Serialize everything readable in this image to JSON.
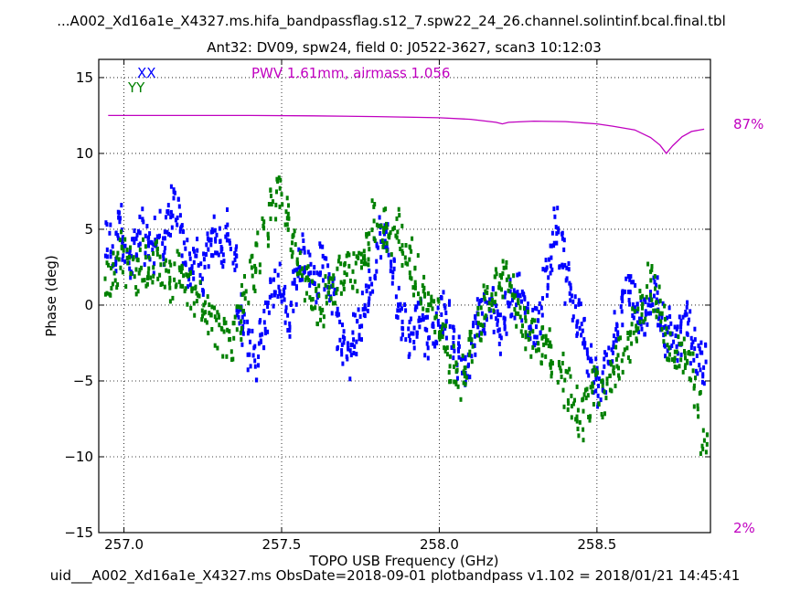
{
  "chart_data": {
    "type": "scatter",
    "title": "...A002_Xd16a1e_X4327.ms.hifa_bandpassflag.s12_7.spw22_24_26.channel.solintinf.bcal.final.tbl",
    "subtitle": "Ant32: DV09,  spw24,  field 0: J0522-3627,  scan3  10:12:03",
    "xlabel": "TOPO USB Frequency (GHz)",
    "ylabel": "Phase (deg)",
    "footer": "uid___A002_Xd16a1e_X4327.ms  ObsDate=2018-09-01   plotbandpass v1.102 = 2018/01/21 14:45:41",
    "xlim": [
      256.92,
      258.86
    ],
    "ylim": [
      -15,
      16.2
    ],
    "xticks": [
      257.0,
      257.5,
      258.0,
      258.5
    ],
    "xtick_labels": [
      "257.0",
      "257.5",
      "258.0",
      "258.5"
    ],
    "yticks": [
      -15,
      -10,
      -5,
      0,
      5,
      10,
      15
    ],
    "ytick_labels": [
      "−15",
      "−10",
      "−5",
      "0",
      "5",
      "10",
      "15"
    ],
    "grid": true,
    "annotation": "PWV 1.61mm, airmass 1.056",
    "atm_right_axis": {
      "top_label": "87%",
      "bottom_label": "2%"
    },
    "colors": {
      "XX": "#0000ff",
      "YY": "#008000",
      "atm": "#c000c0"
    },
    "series": [
      {
        "name": "XX",
        "x_start": 256.95,
        "x_end": 258.84,
        "y": [
          4.5,
          3.5,
          5.5,
          4.0,
          3.0,
          4.5,
          5.0,
          4.0,
          3.5,
          5.0,
          4.0,
          5.5,
          6.5,
          6.0,
          4.0,
          2.5,
          3.0,
          2.0,
          3.5,
          4.5,
          4.0,
          3.5,
          5.0,
          3.0,
          0.0,
          -1.5,
          -3.0,
          -4.0,
          -2.0,
          -1.0,
          0.5,
          1.5,
          0.0,
          -1.0,
          1.0,
          2.5,
          3.5,
          2.5,
          1.5,
          3.0,
          2.0,
          0.5,
          -1.5,
          -2.5,
          -3.5,
          -2.0,
          -1.0,
          0.0,
          1.0,
          3.0,
          4.5,
          4.0,
          2.5,
          0.5,
          -1.0,
          -2.0,
          -1.5,
          -1.0,
          -2.0,
          -2.5,
          -1.5,
          -0.5,
          -1.0,
          -2.5,
          -3.5,
          -4.5,
          -3.5,
          -2.0,
          -1.0,
          -0.5,
          0.5,
          -1.0,
          -2.0,
          -0.5,
          0.5,
          1.0,
          0.0,
          -1.0,
          -1.5,
          -0.5,
          2.0,
          3.5,
          5.0,
          3.5,
          1.5,
          0.0,
          -1.0,
          -2.0,
          -3.5,
          -4.5,
          -5.5,
          -4.5,
          -3.0,
          -1.5,
          0.0,
          1.0,
          0.5,
          -0.5,
          -1.0,
          -0.5,
          0.5,
          -1.0,
          -2.0,
          -1.5,
          -2.5,
          -2.0,
          -1.0,
          -2.5,
          -3.5,
          -4.0
        ]
      },
      {
        "name": "YY",
        "x_start": 256.95,
        "x_end": 258.84,
        "y": [
          2.0,
          2.5,
          3.5,
          2.5,
          2.0,
          3.0,
          2.5,
          3.0,
          2.0,
          1.5,
          2.5,
          1.5,
          1.0,
          0.5,
          0.0,
          -0.5,
          -1.5,
          -2.0,
          -2.5,
          -1.0,
          0.5,
          2.0,
          3.5,
          5.0,
          6.5,
          7.5,
          6.0,
          4.0,
          2.5,
          1.5,
          0.5,
          0.0,
          0.5,
          1.0,
          2.0,
          2.5,
          2.0,
          3.0,
          4.0,
          5.5,
          5.0,
          4.5,
          5.0,
          4.0,
          3.0,
          2.0,
          1.0,
          0.0,
          -1.0,
          -2.5,
          -4.0,
          -5.0,
          -4.0,
          -2.5,
          -1.0,
          0.0,
          0.5,
          1.0,
          1.5,
          1.0,
          -0.5,
          -1.5,
          -2.0,
          -2.5,
          -3.0,
          -3.5,
          -4.5,
          -5.5,
          -6.5,
          -7.5,
          -6.5,
          -5.5,
          -6.0,
          -5.0,
          -4.0,
          -3.5,
          -2.5,
          -1.5,
          0.0,
          1.5,
          0.5,
          -1.0,
          -2.5,
          -3.0,
          -3.5,
          -4.5,
          -6.0,
          -8.5
        ]
      }
    ],
    "atm_curve": {
      "name": "atmospheric transmission",
      "x": [
        256.95,
        257.2,
        257.4,
        257.6,
        257.8,
        258.0,
        258.1,
        258.18,
        258.2,
        258.22,
        258.3,
        258.4,
        258.5,
        258.55,
        258.62,
        258.67,
        258.7,
        258.72,
        258.74,
        258.77,
        258.8,
        258.84
      ],
      "y": [
        12.5,
        12.5,
        12.5,
        12.48,
        12.43,
        12.35,
        12.25,
        12.05,
        11.95,
        12.05,
        12.13,
        12.1,
        11.95,
        11.8,
        11.55,
        11.05,
        10.55,
        10.0,
        10.5,
        11.1,
        11.45,
        11.6
      ]
    }
  }
}
